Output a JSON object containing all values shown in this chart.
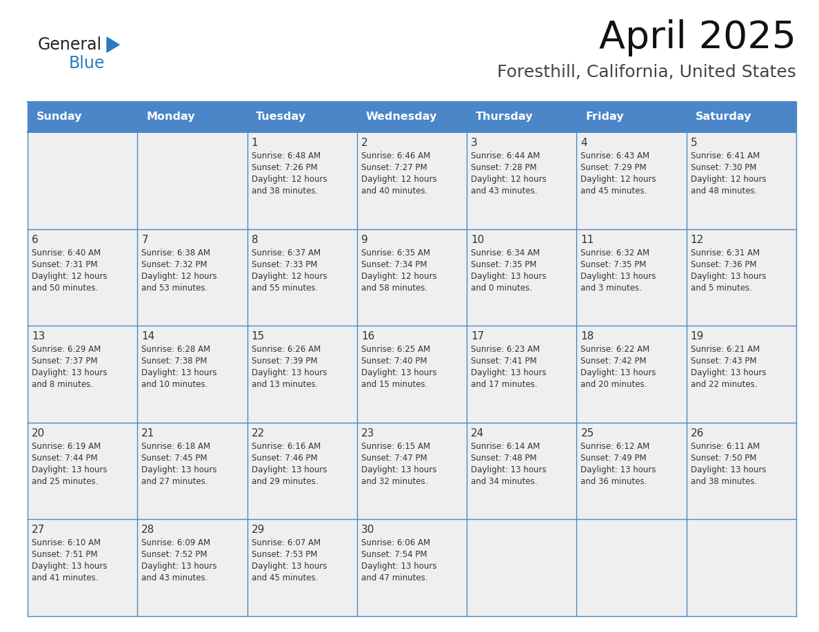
{
  "title": "April 2025",
  "subtitle": "Foresthill, California, United States",
  "header_color": "#4a86c8",
  "header_text_color": "#ffffff",
  "cell_bg_color": "#efefef",
  "border_color": "#4a86c8",
  "text_color": "#333333",
  "days_of_week": [
    "Sunday",
    "Monday",
    "Tuesday",
    "Wednesday",
    "Thursday",
    "Friday",
    "Saturday"
  ],
  "weeks": [
    [
      {
        "day": "",
        "info": ""
      },
      {
        "day": "",
        "info": ""
      },
      {
        "day": "1",
        "info": "Sunrise: 6:48 AM\nSunset: 7:26 PM\nDaylight: 12 hours\nand 38 minutes."
      },
      {
        "day": "2",
        "info": "Sunrise: 6:46 AM\nSunset: 7:27 PM\nDaylight: 12 hours\nand 40 minutes."
      },
      {
        "day": "3",
        "info": "Sunrise: 6:44 AM\nSunset: 7:28 PM\nDaylight: 12 hours\nand 43 minutes."
      },
      {
        "day": "4",
        "info": "Sunrise: 6:43 AM\nSunset: 7:29 PM\nDaylight: 12 hours\nand 45 minutes."
      },
      {
        "day": "5",
        "info": "Sunrise: 6:41 AM\nSunset: 7:30 PM\nDaylight: 12 hours\nand 48 minutes."
      }
    ],
    [
      {
        "day": "6",
        "info": "Sunrise: 6:40 AM\nSunset: 7:31 PM\nDaylight: 12 hours\nand 50 minutes."
      },
      {
        "day": "7",
        "info": "Sunrise: 6:38 AM\nSunset: 7:32 PM\nDaylight: 12 hours\nand 53 minutes."
      },
      {
        "day": "8",
        "info": "Sunrise: 6:37 AM\nSunset: 7:33 PM\nDaylight: 12 hours\nand 55 minutes."
      },
      {
        "day": "9",
        "info": "Sunrise: 6:35 AM\nSunset: 7:34 PM\nDaylight: 12 hours\nand 58 minutes."
      },
      {
        "day": "10",
        "info": "Sunrise: 6:34 AM\nSunset: 7:35 PM\nDaylight: 13 hours\nand 0 minutes."
      },
      {
        "day": "11",
        "info": "Sunrise: 6:32 AM\nSunset: 7:35 PM\nDaylight: 13 hours\nand 3 minutes."
      },
      {
        "day": "12",
        "info": "Sunrise: 6:31 AM\nSunset: 7:36 PM\nDaylight: 13 hours\nand 5 minutes."
      }
    ],
    [
      {
        "day": "13",
        "info": "Sunrise: 6:29 AM\nSunset: 7:37 PM\nDaylight: 13 hours\nand 8 minutes."
      },
      {
        "day": "14",
        "info": "Sunrise: 6:28 AM\nSunset: 7:38 PM\nDaylight: 13 hours\nand 10 minutes."
      },
      {
        "day": "15",
        "info": "Sunrise: 6:26 AM\nSunset: 7:39 PM\nDaylight: 13 hours\nand 13 minutes."
      },
      {
        "day": "16",
        "info": "Sunrise: 6:25 AM\nSunset: 7:40 PM\nDaylight: 13 hours\nand 15 minutes."
      },
      {
        "day": "17",
        "info": "Sunrise: 6:23 AM\nSunset: 7:41 PM\nDaylight: 13 hours\nand 17 minutes."
      },
      {
        "day": "18",
        "info": "Sunrise: 6:22 AM\nSunset: 7:42 PM\nDaylight: 13 hours\nand 20 minutes."
      },
      {
        "day": "19",
        "info": "Sunrise: 6:21 AM\nSunset: 7:43 PM\nDaylight: 13 hours\nand 22 minutes."
      }
    ],
    [
      {
        "day": "20",
        "info": "Sunrise: 6:19 AM\nSunset: 7:44 PM\nDaylight: 13 hours\nand 25 minutes."
      },
      {
        "day": "21",
        "info": "Sunrise: 6:18 AM\nSunset: 7:45 PM\nDaylight: 13 hours\nand 27 minutes."
      },
      {
        "day": "22",
        "info": "Sunrise: 6:16 AM\nSunset: 7:46 PM\nDaylight: 13 hours\nand 29 minutes."
      },
      {
        "day": "23",
        "info": "Sunrise: 6:15 AM\nSunset: 7:47 PM\nDaylight: 13 hours\nand 32 minutes."
      },
      {
        "day": "24",
        "info": "Sunrise: 6:14 AM\nSunset: 7:48 PM\nDaylight: 13 hours\nand 34 minutes."
      },
      {
        "day": "25",
        "info": "Sunrise: 6:12 AM\nSunset: 7:49 PM\nDaylight: 13 hours\nand 36 minutes."
      },
      {
        "day": "26",
        "info": "Sunrise: 6:11 AM\nSunset: 7:50 PM\nDaylight: 13 hours\nand 38 minutes."
      }
    ],
    [
      {
        "day": "27",
        "info": "Sunrise: 6:10 AM\nSunset: 7:51 PM\nDaylight: 13 hours\nand 41 minutes."
      },
      {
        "day": "28",
        "info": "Sunrise: 6:09 AM\nSunset: 7:52 PM\nDaylight: 13 hours\nand 43 minutes."
      },
      {
        "day": "29",
        "info": "Sunrise: 6:07 AM\nSunset: 7:53 PM\nDaylight: 13 hours\nand 45 minutes."
      },
      {
        "day": "30",
        "info": "Sunrise: 6:06 AM\nSunset: 7:54 PM\nDaylight: 13 hours\nand 47 minutes."
      },
      {
        "day": "",
        "info": ""
      },
      {
        "day": "",
        "info": ""
      },
      {
        "day": "",
        "info": ""
      }
    ]
  ],
  "logo_text_general": "General",
  "logo_text_blue": "Blue",
  "logo_general_color": "#222222",
  "logo_blue_color": "#2b7bbf",
  "logo_triangle_color": "#2b7bbf",
  "fig_width": 11.88,
  "fig_height": 9.18
}
